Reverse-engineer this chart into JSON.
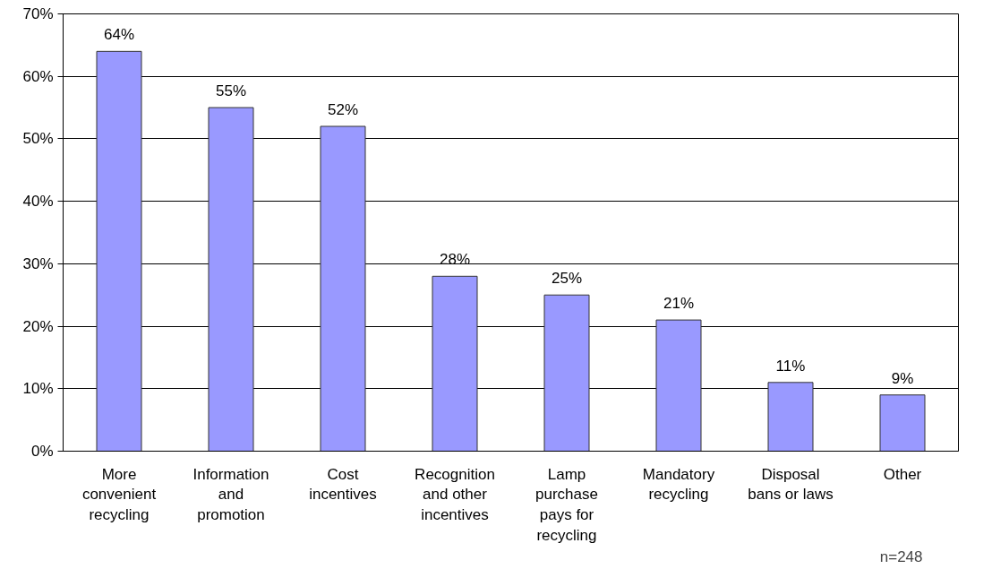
{
  "chart_data": {
    "type": "bar",
    "categories": [
      "More convenient recycling",
      "Information and promotion",
      "Cost incentives",
      "Recognition and other incentives",
      "Lamp purchase pays for recycling",
      "Mandatory recycling",
      "Disposal bans or laws",
      "Other"
    ],
    "values": [
      64,
      55,
      52,
      28,
      25,
      21,
      11,
      9
    ],
    "value_labels": [
      "64%",
      "55%",
      "52%",
      "28%",
      "25%",
      "21%",
      "11%",
      "9%"
    ],
    "color": "#9999ff",
    "ylim": [
      0,
      70
    ],
    "yticks": [
      {
        "value": 0,
        "label": "0%"
      },
      {
        "value": 10,
        "label": "10%"
      },
      {
        "value": 20,
        "label": "20%"
      },
      {
        "value": 30,
        "label": "30%"
      },
      {
        "value": 40,
        "label": "40%"
      },
      {
        "value": 50,
        "label": "50%"
      },
      {
        "value": 60,
        "label": "60%"
      },
      {
        "value": 70,
        "label": "70%"
      }
    ],
    "grid": "y",
    "annotations": [
      "n=248"
    ]
  }
}
